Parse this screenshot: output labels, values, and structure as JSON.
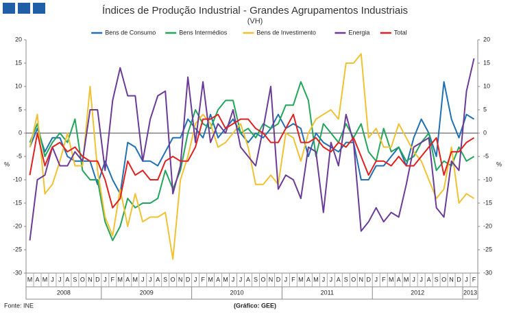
{
  "chart_data": {
    "type": "line",
    "title": "Índices de Produção Industrial - Grandes Agrupamentos Industriais",
    "subtitle": "(VH)",
    "y_label": "%",
    "y2_label": "%",
    "source": "Fonte: INE",
    "credit": "(Gráfico: GEE)",
    "categories": [
      "M",
      "A",
      "M",
      "J",
      "J",
      "A",
      "S",
      "O",
      "N",
      "D",
      "J",
      "F",
      "M",
      "A",
      "M",
      "J",
      "J",
      "A",
      "S",
      "O",
      "N",
      "D",
      "J",
      "F",
      "M",
      "A",
      "M",
      "J",
      "J",
      "A",
      "S",
      "O",
      "N",
      "D",
      "J",
      "F",
      "M",
      "A",
      "M",
      "J",
      "J",
      "A",
      "S",
      "O",
      "N",
      "D",
      "J",
      "F",
      "M",
      "A",
      "M",
      "J",
      "J",
      "A",
      "S",
      "O",
      "N",
      "D",
      "J",
      "F"
    ],
    "year_labels": [
      "2008",
      "2009",
      "2010",
      "2011",
      "2012",
      "2013"
    ],
    "ylim": [
      -30,
      20
    ],
    "yticks": [
      -30,
      -25,
      -20,
      -15,
      -10,
      -5,
      0,
      5,
      10,
      15,
      20
    ],
    "y2lim": [
      -30,
      20
    ],
    "y2ticks": [
      -30,
      -25,
      -20,
      -15,
      -10,
      -5,
      0,
      5,
      10,
      15,
      20
    ],
    "grid": false,
    "series": [
      {
        "name": "Bens de Consumo",
        "color": "#1f6fb4",
        "values": [
          -3,
          1,
          -4,
          -1,
          -1,
          -5,
          -6,
          -6,
          -6,
          -11,
          -6,
          -10,
          -13,
          -2,
          -3,
          -6,
          -6,
          -7,
          -4,
          -1,
          -1,
          3,
          1,
          -1,
          4,
          -1,
          1,
          3,
          0,
          -2,
          0,
          -1,
          1,
          4,
          1,
          2,
          1,
          -5,
          0,
          -2,
          -3,
          -4,
          -2,
          -2,
          -10,
          -10,
          -7,
          -7,
          -5,
          -3,
          -7,
          -1,
          3,
          0,
          -5,
          11,
          3,
          -1,
          4,
          3
        ]
      },
      {
        "name": "Bens Intermédios",
        "color": "#22a55a",
        "values": [
          -2,
          2,
          -5,
          -2,
          0,
          -2,
          3,
          -8,
          -10,
          -10,
          -19,
          -23,
          -20,
          -14,
          -16,
          -15,
          -15,
          -14,
          -8,
          -12,
          -8,
          0,
          5,
          2,
          1,
          5,
          7,
          7,
          0,
          1,
          -1,
          2,
          1,
          2,
          6,
          6,
          11,
          7,
          -5,
          2,
          0,
          -2,
          2,
          -1,
          2,
          -4,
          -6,
          1,
          -4,
          -3,
          -6,
          -5,
          -2,
          0,
          -8,
          -6,
          -7,
          -3,
          -6,
          -5
        ]
      },
      {
        "name": "Bens de Investimento",
        "color": "#f0c232",
        "values": [
          -3,
          4,
          -13,
          -11,
          -6,
          0,
          -7,
          -7,
          10,
          -8,
          -18,
          -22,
          -12,
          -20,
          -13,
          -19,
          -18,
          -18,
          -17,
          -27,
          -10,
          -5,
          2,
          4,
          2,
          -3,
          -2,
          0,
          2,
          -3,
          -11,
          -11,
          -9,
          -11,
          0,
          -1,
          -6,
          0,
          3,
          4,
          5,
          3,
          15,
          15,
          17,
          -1,
          1,
          -3,
          -3,
          2,
          -1,
          -4,
          -6,
          -10,
          -14,
          -12,
          -3,
          -15,
          -13,
          -14
        ]
      },
      {
        "name": "Energia",
        "color": "#6a3a96",
        "values": [
          -23,
          -10,
          -9,
          -3,
          -7,
          -7,
          -4,
          -6,
          5,
          5,
          -8,
          7,
          14,
          8,
          8,
          -6,
          3,
          8,
          9,
          -13,
          -7,
          12,
          -2,
          11,
          -2,
          2,
          0,
          5,
          -3,
          -5,
          -7,
          1,
          10,
          -12,
          -9,
          -10,
          -14,
          -3,
          -4,
          -17,
          -2,
          -7,
          4,
          -2,
          -21,
          -19,
          -16,
          -19,
          -17,
          -18,
          -11,
          -3,
          -2,
          -1,
          -16,
          -18,
          -6,
          -8,
          9,
          16
        ]
      },
      {
        "name": "Total",
        "color": "#e0201f",
        "values": [
          -9,
          0,
          -7,
          -3,
          -2,
          -4,
          -3,
          -5,
          -6,
          -6,
          -10,
          -16,
          -14,
          -6,
          -9,
          -8,
          -10,
          -10,
          -6,
          -5,
          -6,
          -6,
          -3,
          3,
          3,
          4,
          1,
          2,
          3,
          3,
          1,
          0,
          -2,
          -2,
          1,
          4,
          -2,
          -2,
          -1,
          -3,
          -4,
          -2,
          -3,
          -1,
          -5,
          -9,
          -6,
          -6,
          -7,
          -5,
          -7,
          -7,
          -5,
          -3,
          -1,
          -9,
          -4,
          -4,
          -2,
          -1
        ]
      }
    ]
  }
}
